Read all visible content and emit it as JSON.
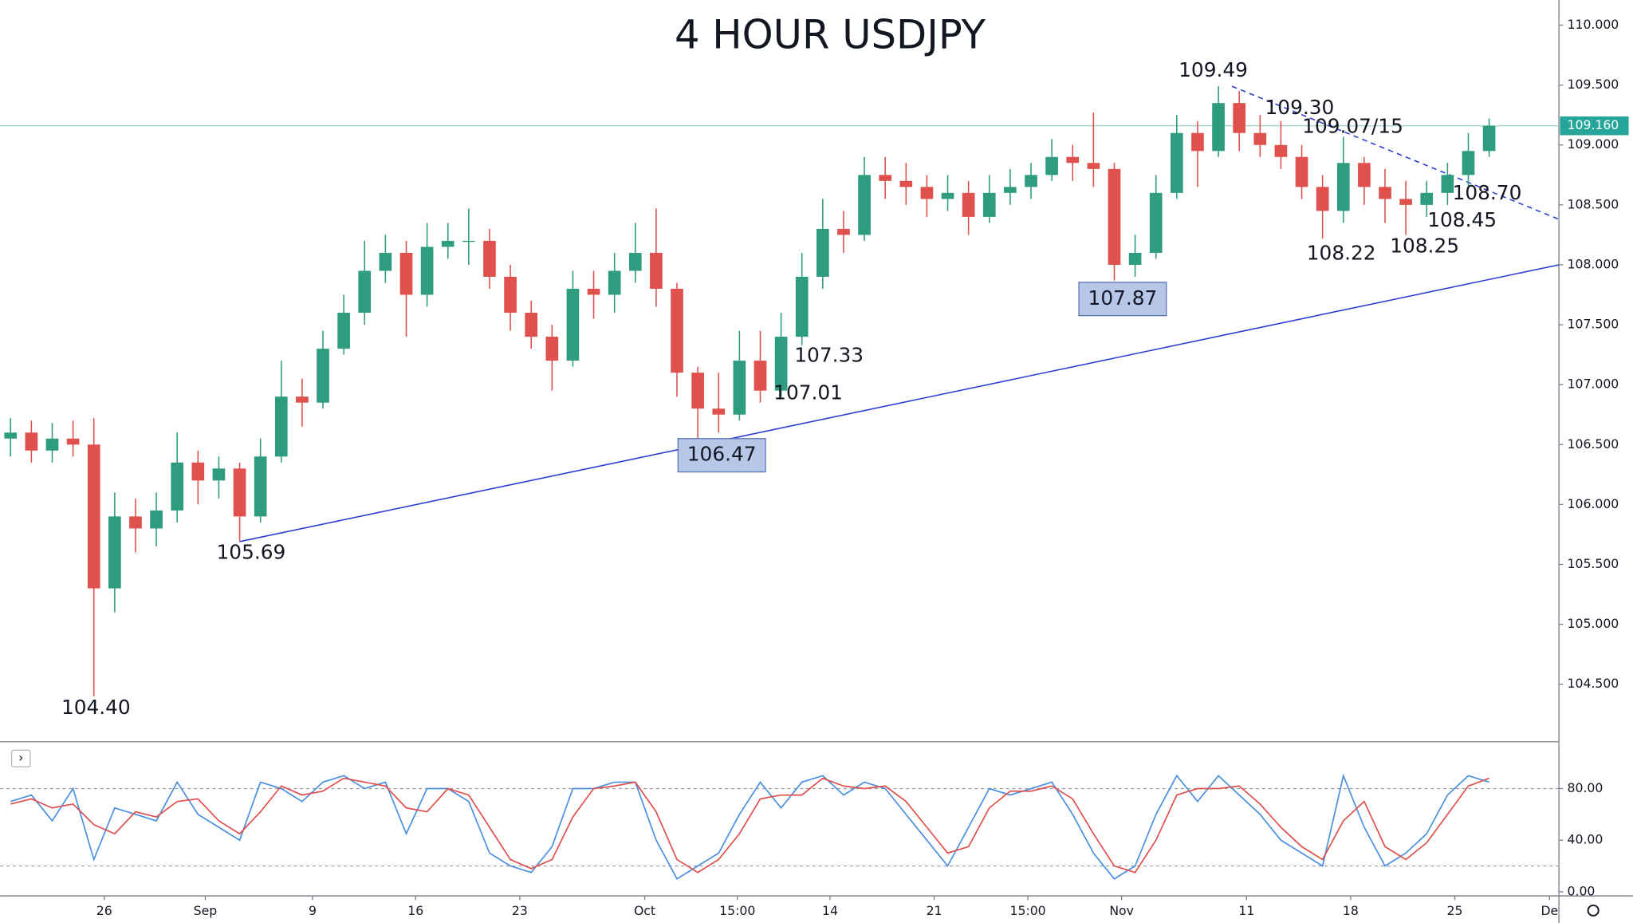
{
  "chart_data": {
    "type": "candlestick",
    "title": "4 HOUR USDJPY",
    "title_color": "#e53a2f",
    "up_color": "#2e9c7e",
    "down_color": "#e0504c",
    "grid": false,
    "x": [
      0,
      1,
      2,
      3,
      4,
      5,
      6,
      7,
      8,
      9,
      10,
      11,
      12,
      13,
      14,
      15,
      16,
      17,
      18,
      19,
      20,
      21,
      22,
      23,
      24,
      25,
      26,
      27,
      28,
      29,
      30,
      31,
      32,
      33,
      34,
      35,
      36,
      37,
      38,
      39,
      40,
      41,
      42,
      43,
      44,
      45,
      46,
      47,
      48,
      49,
      50,
      51,
      52,
      53,
      54,
      55,
      56,
      57,
      58,
      59,
      60,
      61,
      62,
      63,
      64,
      65,
      66,
      67,
      68,
      69,
      70,
      71
    ],
    "open": [
      106.55,
      106.6,
      106.45,
      106.55,
      106.5,
      105.3,
      105.9,
      105.8,
      105.95,
      106.35,
      106.2,
      106.3,
      105.9,
      106.4,
      106.9,
      106.85,
      107.3,
      107.6,
      107.95,
      108.1,
      107.75,
      108.15,
      108.2,
      108.2,
      107.9,
      107.6,
      107.4,
      107.2,
      107.8,
      107.75,
      107.95,
      108.1,
      107.8,
      107.1,
      106.8,
      106.75,
      107.2,
      106.95,
      107.4,
      107.9,
      108.3,
      108.25,
      108.75,
      108.7,
      108.65,
      108.55,
      108.6,
      108.4,
      108.6,
      108.65,
      108.75,
      108.9,
      108.85,
      108.8,
      108.0,
      108.1,
      108.6,
      109.1,
      108.95,
      109.35,
      109.1,
      109.0,
      108.9,
      108.65,
      108.45,
      108.85,
      108.65,
      108.55,
      108.5,
      108.6,
      108.75,
      108.95
    ],
    "high": [
      106.72,
      106.7,
      106.68,
      106.7,
      106.72,
      106.1,
      106.05,
      106.1,
      106.6,
      106.45,
      106.4,
      106.35,
      106.55,
      107.2,
      107.05,
      107.45,
      107.75,
      108.2,
      108.25,
      108.2,
      108.35,
      108.35,
      108.47,
      108.3,
      108.0,
      107.7,
      107.5,
      107.95,
      107.95,
      108.1,
      108.35,
      108.47,
      107.85,
      107.15,
      107.1,
      107.45,
      107.45,
      107.6,
      108.1,
      108.55,
      108.45,
      108.9,
      108.9,
      108.85,
      108.75,
      108.75,
      108.7,
      108.75,
      108.8,
      108.85,
      109.05,
      109.0,
      109.27,
      108.85,
      108.25,
      108.75,
      109.25,
      109.2,
      109.49,
      109.45,
      109.25,
      109.2,
      109.0,
      108.75,
      109.07,
      108.9,
      108.8,
      108.7,
      108.7,
      108.85,
      109.1,
      109.22
    ],
    "low": [
      106.4,
      106.35,
      106.35,
      106.4,
      104.4,
      105.1,
      105.6,
      105.65,
      105.85,
      106.0,
      106.05,
      105.69,
      105.85,
      106.35,
      106.65,
      106.8,
      107.25,
      107.5,
      107.85,
      107.4,
      107.65,
      108.05,
      108.0,
      107.8,
      107.45,
      107.3,
      106.95,
      107.15,
      107.55,
      107.6,
      107.85,
      107.65,
      106.9,
      106.47,
      106.6,
      106.7,
      106.85,
      106.9,
      107.33,
      107.8,
      108.1,
      108.2,
      108.55,
      108.5,
      108.4,
      108.45,
      108.25,
      108.35,
      108.5,
      108.55,
      108.7,
      108.7,
      108.65,
      107.87,
      107.9,
      108.05,
      108.55,
      108.65,
      108.9,
      108.95,
      108.9,
      108.8,
      108.55,
      108.22,
      108.35,
      108.5,
      108.35,
      108.25,
      108.4,
      108.5,
      108.65,
      108.9
    ],
    "close": [
      106.6,
      106.45,
      106.55,
      106.5,
      105.3,
      105.9,
      105.8,
      105.95,
      106.35,
      106.2,
      106.3,
      105.9,
      106.4,
      106.9,
      106.85,
      107.3,
      107.6,
      107.95,
      108.1,
      107.75,
      108.15,
      108.2,
      108.2,
      107.9,
      107.6,
      107.4,
      107.2,
      107.8,
      107.75,
      107.95,
      108.1,
      107.8,
      107.1,
      106.8,
      106.75,
      107.2,
      106.95,
      107.4,
      107.9,
      108.3,
      108.25,
      108.75,
      108.7,
      108.65,
      108.55,
      108.6,
      108.4,
      108.6,
      108.65,
      108.75,
      108.9,
      108.85,
      108.8,
      108.0,
      108.1,
      108.6,
      109.1,
      108.95,
      109.35,
      109.1,
      109.0,
      108.9,
      108.65,
      108.45,
      108.85,
      108.65,
      108.55,
      108.5,
      108.6,
      108.75,
      108.95,
      109.16
    ],
    "xlim": [
      -0.5,
      74.35
    ],
    "xticks": [
      {
        "value": 4.5,
        "label": "26"
      },
      {
        "value": 9.35,
        "label": "Sep"
      },
      {
        "value": 14.5,
        "label": "9"
      },
      {
        "value": 19.45,
        "label": "16"
      },
      {
        "value": 24.45,
        "label": "23"
      },
      {
        "value": 30.45,
        "label": "Oct"
      },
      {
        "value": 34.9,
        "label": "15:00"
      },
      {
        "value": 39.35,
        "label": "14"
      },
      {
        "value": 44.35,
        "label": "21"
      },
      {
        "value": 48.85,
        "label": "15:00"
      },
      {
        "value": 53.35,
        "label": "Nov"
      },
      {
        "value": 59.35,
        "label": "11"
      },
      {
        "value": 64.35,
        "label": "18"
      },
      {
        "value": 69.35,
        "label": "25"
      },
      {
        "value": 73.9,
        "label": "De"
      }
    ],
    "ylim": [
      104.02,
      110.21
    ],
    "yticks": [
      {
        "value": 104.5,
        "label": "104.500"
      },
      {
        "value": 105,
        "label": "105.000"
      },
      {
        "value": 105.5,
        "label": "105.500"
      },
      {
        "value": 106,
        "label": "106.000"
      },
      {
        "value": 106.5,
        "label": "106.500"
      },
      {
        "value": 107,
        "label": "107.000"
      },
      {
        "value": 107.5,
        "label": "107.500"
      },
      {
        "value": 108,
        "label": "108.000"
      },
      {
        "value": 108.5,
        "label": "108.500"
      },
      {
        "value": 109,
        "label": "109.000"
      },
      {
        "value": 109.5,
        "label": "109.500"
      },
      {
        "value": 110,
        "label": "110.000"
      }
    ],
    "last_price": {
      "value": 109.16,
      "label": "109.160",
      "color": "#26a69a"
    },
    "trendlines": [
      {
        "style": "solid",
        "color": "#2a3bd6",
        "points": [
          [
            11,
            105.69
          ],
          [
            74.35,
            108.0
          ]
        ]
      },
      {
        "style": "dashed",
        "color": "#2a3bd6",
        "points": [
          [
            58.65,
            109.49
          ],
          [
            74.35,
            108.38
          ]
        ]
      }
    ],
    "annotations": [
      {
        "text": "104.40",
        "boxed": false
      },
      {
        "text": "105.69",
        "boxed": false
      },
      {
        "text": "106.47",
        "boxed": true
      },
      {
        "text": "107.01",
        "boxed": false
      },
      {
        "text": "107.33",
        "boxed": false
      },
      {
        "text": "107.87",
        "boxed": true
      },
      {
        "text": "108.22",
        "boxed": false
      },
      {
        "text": "108.25",
        "boxed": false
      },
      {
        "text": "108.45",
        "boxed": false
      },
      {
        "text": "108.70",
        "boxed": false
      },
      {
        "text": "109.49",
        "boxed": false
      },
      {
        "text": "109.30",
        "boxed": false
      },
      {
        "text": "109.07/15",
        "boxed": false
      }
    ],
    "oscillator": {
      "toggle": "›",
      "ylim": [
        -3.2,
        114.7
      ],
      "yticks": [
        {
          "value": 0,
          "label": "0.00"
        },
        {
          "value": 40,
          "label": "40.00"
        },
        {
          "value": 80,
          "label": "80.00"
        }
      ],
      "bands": [
        20,
        80
      ],
      "series": [
        {
          "color": "#4a8fe0",
          "values": [
            70,
            75,
            55,
            80,
            25,
            65,
            60,
            55,
            85,
            60,
            50,
            40,
            85,
            80,
            70,
            85,
            90,
            80,
            85,
            45,
            80,
            80,
            70,
            30,
            20,
            15,
            35,
            80,
            80,
            85,
            85,
            40,
            10,
            20,
            30,
            60,
            85,
            65,
            85,
            90,
            75,
            85,
            80,
            60,
            40,
            20,
            50,
            80,
            75,
            80,
            85,
            60,
            30,
            10,
            20,
            60,
            90,
            70,
            90,
            75,
            60,
            40,
            30,
            20,
            90,
            50,
            20,
            30,
            45,
            75,
            90,
            85
          ]
        },
        {
          "color": "#e0504c",
          "values": [
            68,
            72,
            65,
            68,
            52,
            45,
            62,
            58,
            70,
            72,
            55,
            45,
            62,
            82,
            75,
            78,
            88,
            85,
            82,
            65,
            62,
            80,
            75,
            50,
            25,
            18,
            25,
            58,
            80,
            82,
            85,
            62,
            25,
            15,
            25,
            45,
            72,
            75,
            75,
            88,
            82,
            80,
            82,
            70,
            50,
            30,
            35,
            65,
            78,
            78,
            82,
            72,
            45,
            20,
            15,
            40,
            75,
            80,
            80,
            82,
            68,
            50,
            35,
            25,
            55,
            70,
            35,
            25,
            38,
            60,
            82,
            88
          ]
        }
      ]
    }
  }
}
